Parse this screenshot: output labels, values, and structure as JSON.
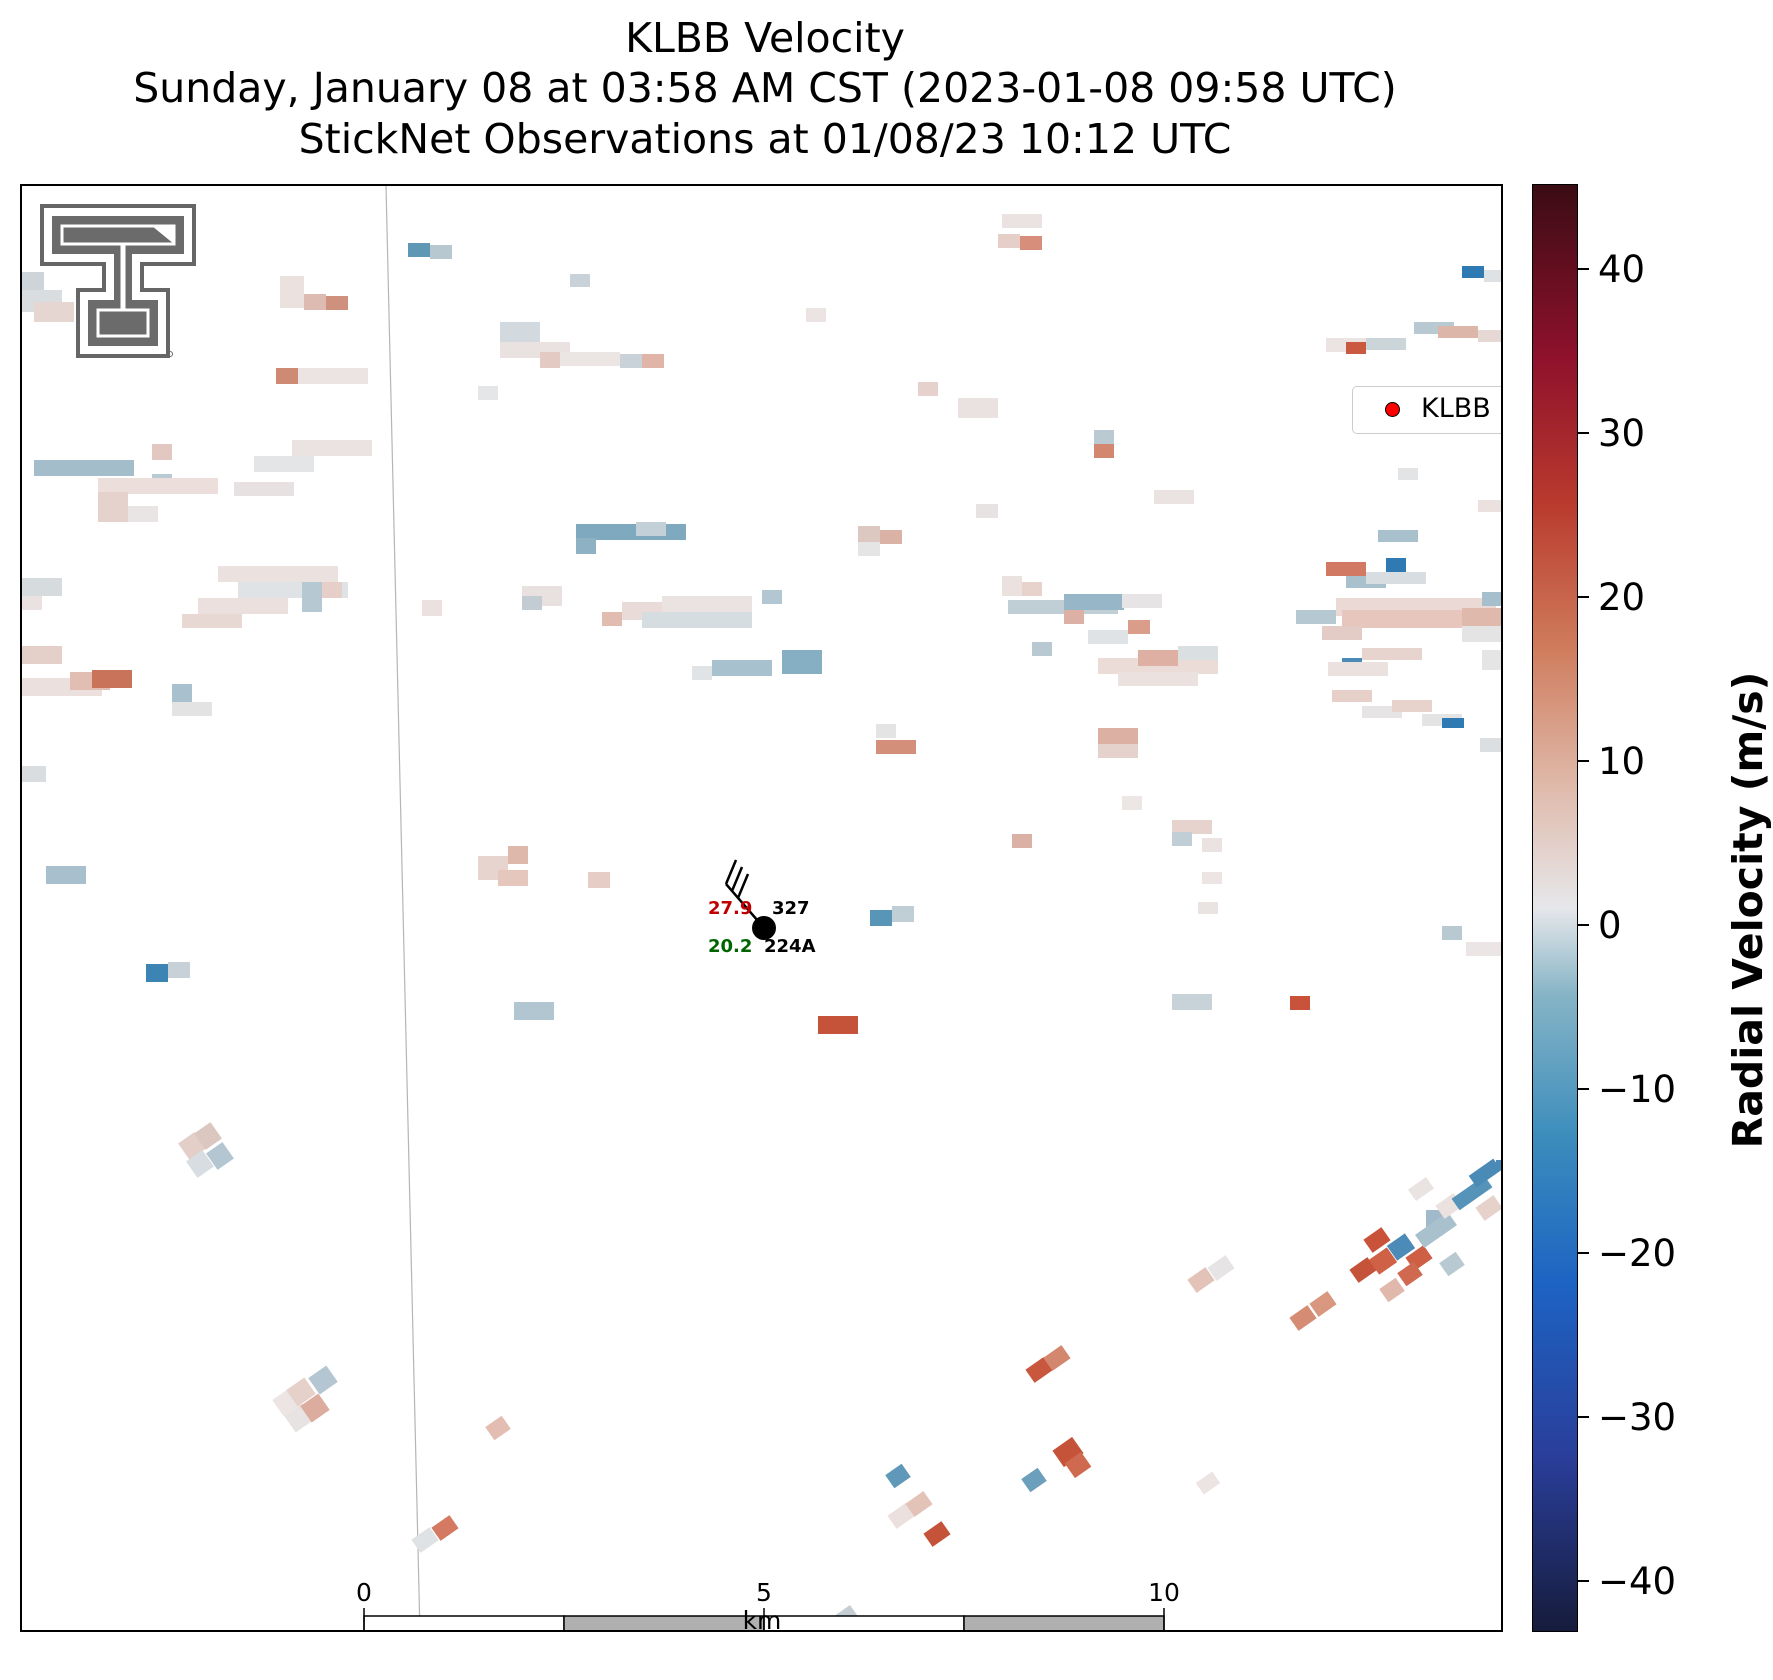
{
  "title": {
    "line1": "KLBB Velocity",
    "line2": "Sunday, January 08 at 03:58 AM CST (2023-01-08 09:58 UTC)",
    "line3": "StickNet Observations at 01/08/23 10:12 UTC"
  },
  "legend": {
    "label": "KLBB",
    "marker_color": "#ff0000"
  },
  "station": {
    "temperature": "27.9",
    "dewpoint": "20.2",
    "pressure": "327",
    "id": "224A",
    "temp_color": "#c00000",
    "dew_color": "#006400"
  },
  "scale_bar": {
    "labels": [
      "0",
      "5",
      "10"
    ],
    "unit": "km"
  },
  "colorbar": {
    "label": "Radial Velocity (m/s)",
    "min": -45,
    "max": 45,
    "ticks": [
      "40",
      "30",
      "20",
      "10",
      "0",
      "−10",
      "−20",
      "−30",
      "−40"
    ]
  },
  "logo": {
    "name": "texas-tech-double-t-logo"
  }
}
